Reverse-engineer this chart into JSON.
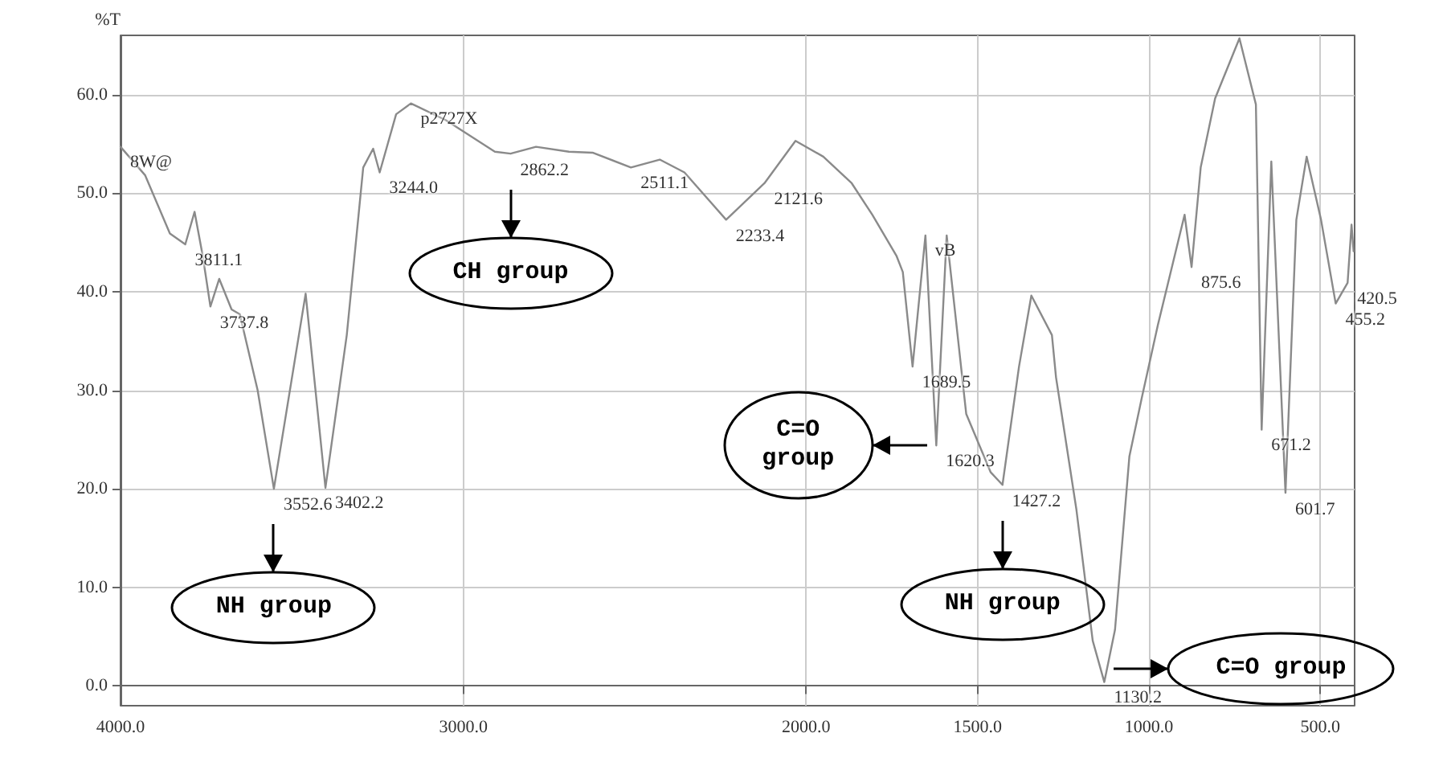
{
  "chart_data": {
    "type": "line",
    "ylabel": "%T",
    "color": "#8a8a8a",
    "marker": "none",
    "grid": true,
    "xlim": [
      4000,
      400
    ],
    "ylim": [
      -2,
      66
    ],
    "xticks": [
      {
        "value": 4000,
        "label": "4000.0"
      },
      {
        "value": 3000,
        "label": "3000.0"
      },
      {
        "value": 2000,
        "label": "2000.0"
      },
      {
        "value": 1500,
        "label": "1500.0"
      },
      {
        "value": 1000,
        "label": "1000.0"
      },
      {
        "value": 500,
        "label": "500.0"
      }
    ],
    "yticks": [
      {
        "value": 0,
        "label": "0.0"
      },
      {
        "value": 10,
        "label": "10.0"
      },
      {
        "value": 20,
        "label": "20.0"
      },
      {
        "value": 30,
        "label": "30.0"
      },
      {
        "value": 40,
        "label": "40.0"
      },
      {
        "value": 50,
        "label": "50.0"
      },
      {
        "value": 60,
        "label": "60.0"
      }
    ],
    "x": [
      4000,
      3928,
      3856,
      3811.1,
      3784,
      3760,
      3737.8,
      3712,
      3676,
      3652,
      3600,
      3552.6,
      3460,
      3402.2,
      3340,
      3292,
      3263,
      3244.0,
      3196,
      3153,
      3051,
      2908,
      2862.2,
      2788,
      2692,
      2623,
      2511.1,
      2427,
      2355,
      2233.4,
      2121.6,
      2031,
      1950,
      1867,
      1807,
      1736,
      1718,
      1689.5,
      1652,
      1620.3,
      1590,
      1533,
      1462,
      1427.2,
      1379,
      1343,
      1283,
      1271,
      1212,
      1164,
      1130.2,
      1099,
      1057,
      1021,
      974,
      896,
      875.6,
      849,
      807,
      736,
      688,
      671.2,
      643,
      601.7,
      570,
      540,
      498,
      455.2,
      420.5,
      409,
      403
    ],
    "values": [
      54.7,
      51.8,
      45.9,
      44.8,
      48.1,
      43.6,
      38.5,
      41.3,
      38.2,
      37.7,
      30,
      20.0,
      39.8,
      20.1,
      35.6,
      52.6,
      54.5,
      52.1,
      58,
      59.1,
      57.4,
      54.2,
      54.0,
      54.7,
      54.2,
      54.1,
      52.6,
      53.4,
      52.1,
      47.3,
      51.0,
      55.3,
      53.7,
      51,
      47.8,
      43.6,
      42,
      32.4,
      45.7,
      24.4,
      45.7,
      27.6,
      21.7,
      20.4,
      32.4,
      39.6,
      35.6,
      31.3,
      18,
      4.6,
      0.4,
      5.7,
      23.3,
      29.2,
      36.6,
      47.8,
      42.5,
      52.6,
      59.6,
      65.7,
      59,
      26,
      53.2,
      19.6,
      47.3,
      53.7,
      47.3,
      38.8,
      40.9,
      46.8,
      44.1
    ],
    "annotations": [
      "NH group",
      "CH group",
      "C=O group",
      "NH group",
      "C=O group",
      {
        "text": "8W@",
        "x": 4000,
        "y": 54.7
      },
      {
        "text": "3811.1",
        "x": 3811.1,
        "y": 44.8
      },
      {
        "text": "3737.8",
        "x": 3737.8,
        "y": 38.5
      },
      {
        "text": "3552.6",
        "x": 3552.6,
        "y": 20.0
      },
      {
        "text": "3402.2",
        "x": 3402.2,
        "y": 20.1
      },
      {
        "text": "3244.0",
        "x": 3244.0,
        "y": 52.1
      },
      {
        "text": "p2727X",
        "x": 3153,
        "y": 59.1
      },
      {
        "text": "2862.2",
        "x": 2862.2,
        "y": 54.0
      },
      {
        "text": "2511.1",
        "x": 2511.1,
        "y": 52.6
      },
      {
        "text": "2233.4",
        "x": 2233.4,
        "y": 47.3
      },
      {
        "text": "2121.6",
        "x": 2121.6,
        "y": 51.0
      },
      {
        "text": "1689.5",
        "x": 1689.5,
        "y": 32.4
      },
      {
        "text": "vB",
        "x": 1652,
        "y": 45.7
      },
      {
        "text": "1620.3",
        "x": 1620.3,
        "y": 24.4
      },
      {
        "text": "1427.2",
        "x": 1427.2,
        "y": 20.4
      },
      {
        "text": "1130.2",
        "x": 1130.2,
        "y": 0.4
      },
      {
        "text": "875.6",
        "x": 875.6,
        "y": 42.5
      },
      {
        "text": "671.2",
        "x": 671.2,
        "y": 26
      },
      {
        "text": "601.7",
        "x": 601.7,
        "y": 19.6
      },
      {
        "text": "455.2",
        "x": 455.2,
        "y": 38.8
      },
      {
        "text": "420.5",
        "x": 420.5,
        "y": 40.9
      }
    ]
  }
}
